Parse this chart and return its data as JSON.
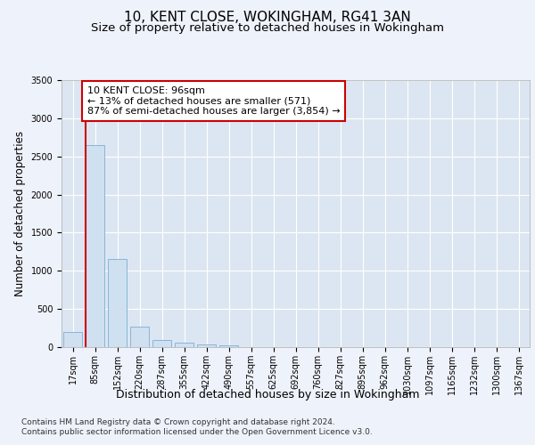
{
  "title": "10, KENT CLOSE, WOKINGHAM, RG41 3AN",
  "subtitle": "Size of property relative to detached houses in Wokingham",
  "xlabel": "Distribution of detached houses by size in Wokingham",
  "ylabel": "Number of detached properties",
  "footer_line1": "Contains HM Land Registry data © Crown copyright and database right 2024.",
  "footer_line2": "Contains public sector information licensed under the Open Government Licence v3.0.",
  "bar_labels": [
    "17sqm",
    "85sqm",
    "152sqm",
    "220sqm",
    "287sqm",
    "355sqm",
    "422sqm",
    "490sqm",
    "557sqm",
    "625sqm",
    "692sqm",
    "760sqm",
    "827sqm",
    "895sqm",
    "962sqm",
    "1030sqm",
    "1097sqm",
    "1165sqm",
    "1232sqm",
    "1300sqm",
    "1367sqm"
  ],
  "bar_values": [
    200,
    2650,
    1150,
    265,
    90,
    55,
    35,
    20,
    0,
    0,
    0,
    0,
    0,
    0,
    0,
    0,
    0,
    0,
    0,
    0,
    0
  ],
  "bar_color": "#cfe0f0",
  "bar_edge_color": "#7aafd4",
  "property_line_color": "#cc0000",
  "annotation_text": "10 KENT CLOSE: 96sqm\n← 13% of detached houses are smaller (571)\n87% of semi-detached houses are larger (3,854) →",
  "annotation_box_color": "#cc0000",
  "ylim": [
    0,
    3500
  ],
  "yticks": [
    0,
    500,
    1000,
    1500,
    2000,
    2500,
    3000,
    3500
  ],
  "background_color": "#eef2fa",
  "plot_bg_color": "#dce6f2",
  "grid_color": "#ffffff",
  "title_fontsize": 11,
  "subtitle_fontsize": 9.5,
  "ylabel_fontsize": 8.5,
  "xlabel_fontsize": 9,
  "tick_fontsize": 7,
  "footer_fontsize": 6.5,
  "annotation_fontsize": 8
}
